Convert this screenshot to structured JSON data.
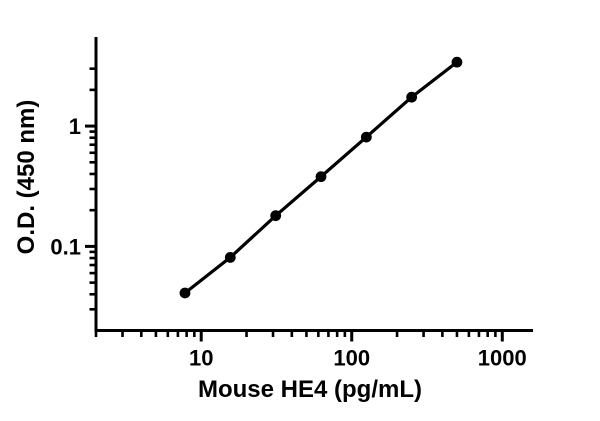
{
  "figure": {
    "background": "#ffffff",
    "ink_color": "#000000"
  },
  "chart_data": {
    "type": "line",
    "title": "",
    "xlabel": "Mouse HE4 (pg/mL)",
    "ylabel": "O.D. (450 nm)",
    "x_scale": "log",
    "y_scale": "log",
    "x": [
      7.8,
      15.6,
      31.25,
      62.5,
      125,
      250,
      500
    ],
    "y": [
      0.041,
      0.081,
      0.18,
      0.38,
      0.81,
      1.74,
      3.4
    ],
    "marker": "filled-circle",
    "line_color": "#000000",
    "marker_color": "#000000",
    "xlim": [
      2,
      1600
    ],
    "ylim": [
      0.02,
      5.5
    ],
    "x_major_ticks": [
      10,
      100,
      1000
    ],
    "x_major_tick_labels": [
      "10",
      "100",
      "1000"
    ],
    "y_major_ticks": [
      0.1,
      1
    ],
    "y_major_tick_labels": [
      "0.1",
      "1"
    ],
    "x_minor_ticks": [
      2,
      3,
      4,
      5,
      6,
      7,
      8,
      9,
      20,
      30,
      40,
      50,
      60,
      70,
      80,
      90,
      200,
      300,
      400,
      500,
      600,
      700,
      800,
      900
    ],
    "y_minor_ticks": [
      0.03,
      0.04,
      0.05,
      0.06,
      0.07,
      0.08,
      0.09,
      0.2,
      0.3,
      0.4,
      0.5,
      0.6,
      0.7,
      0.8,
      0.9,
      2,
      3
    ],
    "grid": false,
    "legend": false
  }
}
